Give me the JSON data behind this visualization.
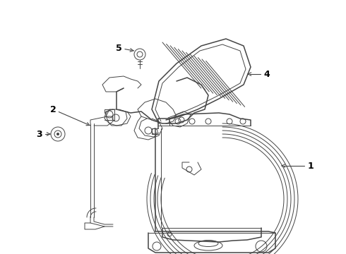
{
  "background_color": "#ffffff",
  "line_color": "#444444",
  "label_color": "#000000",
  "fig_width": 4.9,
  "fig_height": 3.6,
  "dpi": 100
}
